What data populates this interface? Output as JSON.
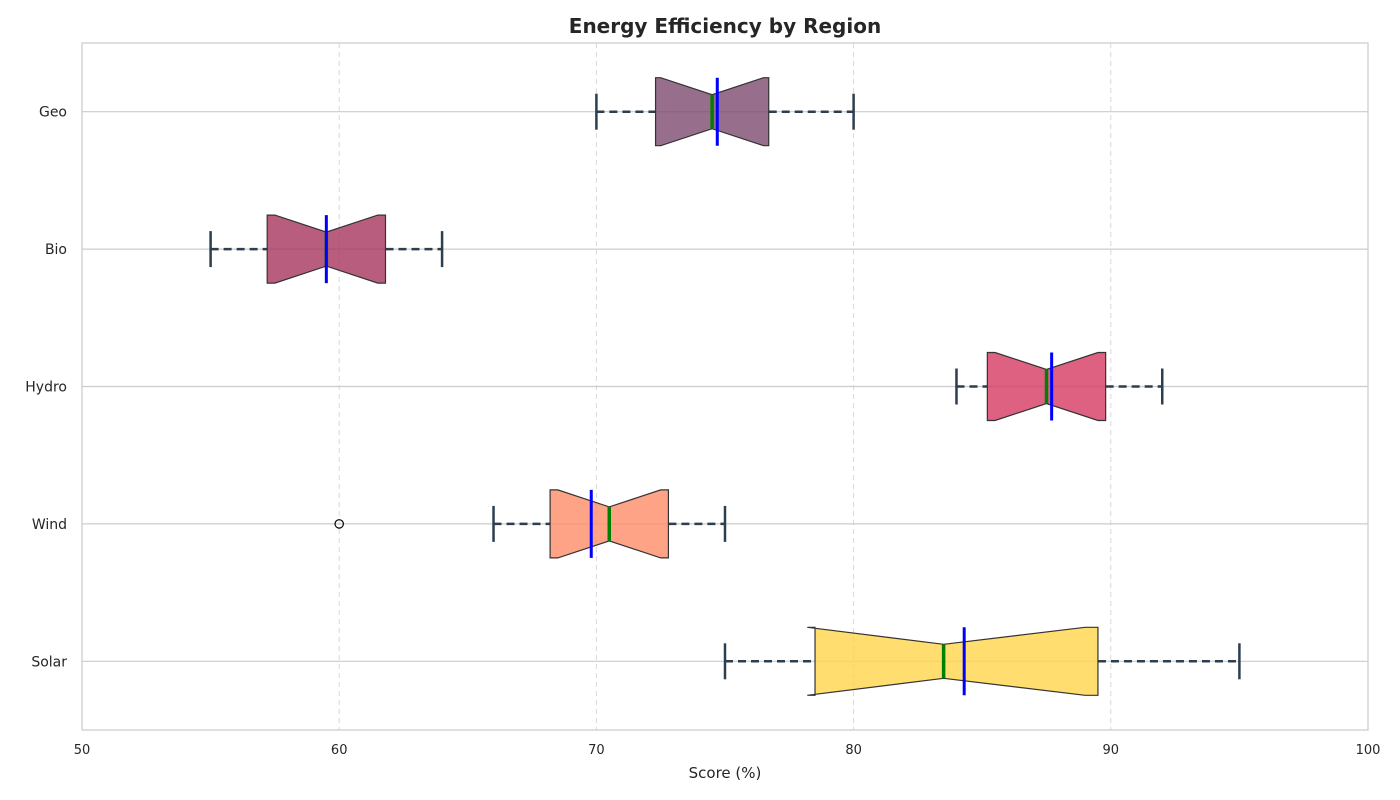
{
  "chart_data": {
    "type": "box",
    "orientation": "horizontal",
    "notched": true,
    "title": "Energy Efficiency by Region",
    "xlabel": "Score (%)",
    "ylabel": "",
    "xlim": [
      50,
      100
    ],
    "x_ticks": [
      50,
      60,
      70,
      80,
      90,
      100
    ],
    "grid": true,
    "legend": false,
    "colors": {
      "median_line": "#008000",
      "mean_line": "#0000ff",
      "whisker": "#2c3e50",
      "box_edge": "#333333"
    },
    "categories": [
      "Solar",
      "Wind",
      "Hydro",
      "Bio",
      "Geo"
    ],
    "series": [
      {
        "category": "Solar",
        "min": 75,
        "q1": 78.5,
        "median": 83.5,
        "mean": 84.3,
        "q3": 89.5,
        "max": 95,
        "notch_low": 78.2,
        "notch_high": 89.0,
        "outliers": [],
        "color": "#ffd44a"
      },
      {
        "category": "Wind",
        "min": 66,
        "q1": 68.2,
        "median": 70.5,
        "mean": 69.8,
        "q3": 72.8,
        "max": 75,
        "notch_low": 68.5,
        "notch_high": 72.5,
        "outliers": [
          60
        ],
        "color": "#ff8c69"
      },
      {
        "category": "Hydro",
        "min": 84,
        "q1": 85.2,
        "median": 87.5,
        "mean": 87.7,
        "q3": 89.8,
        "max": 92,
        "notch_low": 85.5,
        "notch_high": 89.5,
        "outliers": [],
        "color": "#d63a63"
      },
      {
        "category": "Bio",
        "min": 55,
        "q1": 57.2,
        "median": 59.5,
        "mean": 59.5,
        "q3": 61.8,
        "max": 64,
        "notch_low": 57.5,
        "notch_high": 61.5,
        "outliers": [],
        "color": "#a8345e"
      },
      {
        "category": "Geo",
        "min": 70,
        "q1": 72.3,
        "median": 74.5,
        "mean": 74.7,
        "q3": 76.7,
        "max": 80,
        "notch_low": 72.5,
        "notch_high": 76.5,
        "outliers": [],
        "color": "#7d4a6e"
      }
    ]
  }
}
